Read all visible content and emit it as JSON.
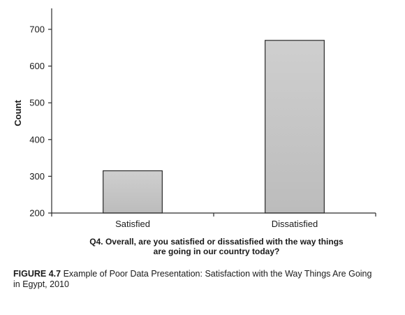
{
  "chart_data": {
    "type": "bar",
    "categories": [
      "Satisfied",
      "Dissatisfied"
    ],
    "values": [
      315,
      670
    ],
    "xlabel": "Q4. Overall, are you satisfied or dissatisfied with the way things are going in our country today?",
    "xlabel_lines": [
      "Q4. Overall, are you satisfied or dissatisfied with the way things",
      "are going in our country today?"
    ],
    "ylabel": "Count",
    "ylim": [
      200,
      700
    ],
    "yticks": [
      200,
      300,
      400,
      500,
      600,
      700
    ],
    "grid": false,
    "bar_color": "#c6c6c6"
  },
  "caption": {
    "label": "FIGURE 4.7",
    "text": "Example of Poor Data Presentation: Satisfaction with the Way Things Are Going in Egypt, 2010"
  }
}
